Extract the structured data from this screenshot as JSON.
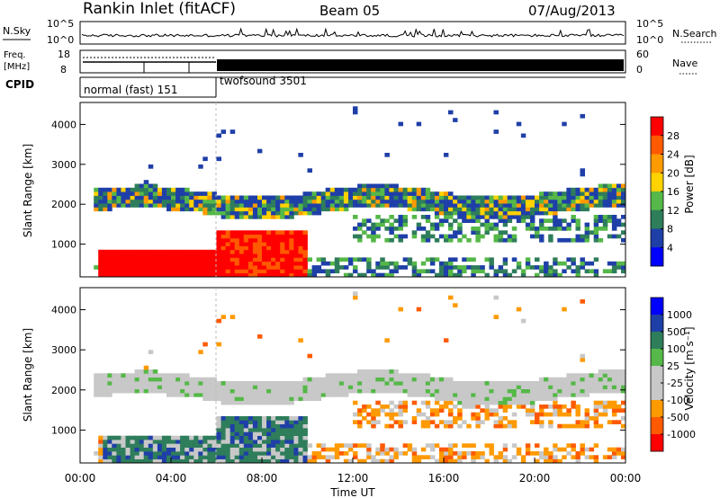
{
  "header": {
    "station": "Rankin Inlet (fitACF)",
    "beam": "Beam 05",
    "date": "07/Aug/2013"
  },
  "top_panel": {
    "left_label": "N.Sky",
    "left_ticks": [
      "10^5",
      "10^0"
    ],
    "right_label": "N.Search",
    "right_ticks": [
      "10^5",
      "10^0"
    ]
  },
  "freq_panel": {
    "left_label_1": "Freq.",
    "left_label_2": "[MHz]",
    "left_ticks": [
      "18",
      "8"
    ],
    "right_label": "Nave",
    "right_ticks": [
      "60",
      "0"
    ]
  },
  "cpid": {
    "label": "CPID",
    "modes": [
      "normal (fast) 151",
      "twofsound 3501"
    ]
  },
  "colors": {
    "power": [
      "#0000ff",
      "#1f3fa8",
      "#2e7d5b",
      "#55b848",
      "#ffd200",
      "#ff9a00",
      "#ff5a00",
      "#ff0000"
    ],
    "velocity": [
      "#ff0000",
      "#ff5a00",
      "#ff9a00",
      "#c8c8c8",
      "#c8c8c8",
      "#55b848",
      "#2e7d5b",
      "#1f3fa8",
      "#0000ff"
    ]
  },
  "chart_data": [
    {
      "type": "heatmap",
      "title": "Power",
      "ylabel": "Slant Range [km]",
      "xlabel": "Time UT",
      "yticks": [
        "1000",
        "2000",
        "3000",
        "4000"
      ],
      "ylim": [
        180,
        4550
      ],
      "xlim": [
        0,
        24
      ],
      "colorbar_label": "Power [dB]",
      "colorbar_ticks": [
        "4",
        "8",
        "12",
        "16",
        "20",
        "24",
        "28"
      ]
    },
    {
      "type": "heatmap",
      "title": "Velocity",
      "ylabel": "Slant Range [km]",
      "xlabel": "Time UT",
      "yticks": [
        "1000",
        "2000",
        "3000",
        "4000"
      ],
      "ylim": [
        180,
        4550
      ],
      "xlim": [
        0,
        24
      ],
      "xticks": [
        "00:00",
        "04:00",
        "08:00",
        "12:00",
        "16:00",
        "20:00",
        "00:00"
      ],
      "colorbar_label": "Velocity [m s⁻¹]",
      "colorbar_ticks": [
        "1000",
        "500",
        "100",
        "25",
        "-25",
        "-100",
        "-500",
        "-1000"
      ]
    }
  ]
}
